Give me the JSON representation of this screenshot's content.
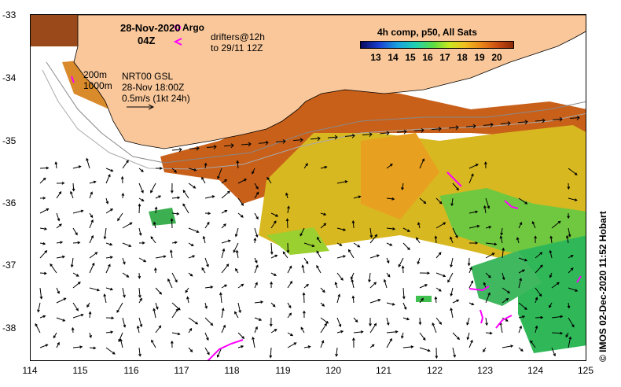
{
  "header": {
    "date": "28-Nov-2020",
    "time": "04Z",
    "argo_label": "Argo",
    "drifters_line1": "drifters@12h",
    "drifters_line2": "to 29/11 12Z",
    "contour_200": "200m",
    "contour_1000": "1000m",
    "gsl_line1": "NRT00 GSL",
    "gsl_line2": "28-Nov 18:00Z",
    "gsl_line3": "0.5m/s (1kt 24h)"
  },
  "colorbar": {
    "title": "4h comp, p50, All Sats",
    "ticks": [
      "13",
      "14",
      "15",
      "16",
      "17",
      "18",
      "19",
      "20"
    ]
  },
  "axes": {
    "x_ticks": [
      "114",
      "115",
      "116",
      "117",
      "118",
      "119",
      "120",
      "121",
      "122",
      "123",
      "124",
      "125"
    ],
    "y_ticks": [
      "-33",
      "-34",
      "-35",
      "-36",
      "-37",
      "-38"
    ]
  },
  "credit": "© IMOS 02-Dec-2020 11:52 Hobart",
  "colors": {
    "land": "#f9c79a",
    "argo": "#ff00ff",
    "warm": "#c8601a",
    "mid": "#e8b020",
    "cool": "#58c840",
    "cooler": "#20b060"
  }
}
